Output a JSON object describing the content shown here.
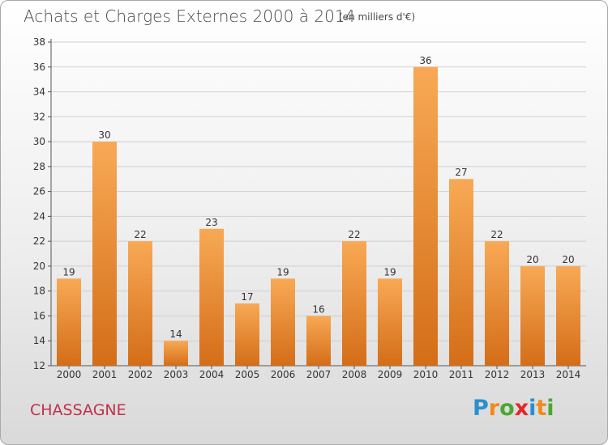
{
  "header": {
    "title": "Achats et Charges Externes 2000 à 2014",
    "unit": "(en milliers d'€)"
  },
  "footer": {
    "commune": "CHASSAGNE",
    "logo_letters": [
      "P",
      "r",
      "o",
      "x",
      "i",
      "t",
      "i"
    ],
    "logo_colors": [
      "#2a8fd0",
      "#f08a1c",
      "#4aa832",
      "#e4262c",
      "#2a8fd0",
      "#f08a1c",
      "#4aa832"
    ]
  },
  "colors": {
    "bar_light": "#f8a955",
    "bar_dark": "#d46d18",
    "axis": "#555555",
    "grid": "#cfcfcf",
    "text": "#333333"
  },
  "chart_data": {
    "type": "bar",
    "title": "Achats et Charges Externes 2000 à 2014",
    "subtitle": "(en milliers d'€)",
    "xlabel": "",
    "ylabel": "",
    "ylim": [
      12,
      38
    ],
    "yticks": [
      12,
      14,
      16,
      18,
      20,
      22,
      24,
      26,
      28,
      30,
      32,
      34,
      36,
      38
    ],
    "grid": true,
    "categories": [
      "2000",
      "2001",
      "2002",
      "2003",
      "2004",
      "2005",
      "2006",
      "2007",
      "2008",
      "2009",
      "2010",
      "2011",
      "2012",
      "2013",
      "2014"
    ],
    "values": [
      19,
      30,
      22,
      14,
      23,
      17,
      19,
      16,
      22,
      19,
      36,
      27,
      22,
      20,
      20
    ]
  }
}
